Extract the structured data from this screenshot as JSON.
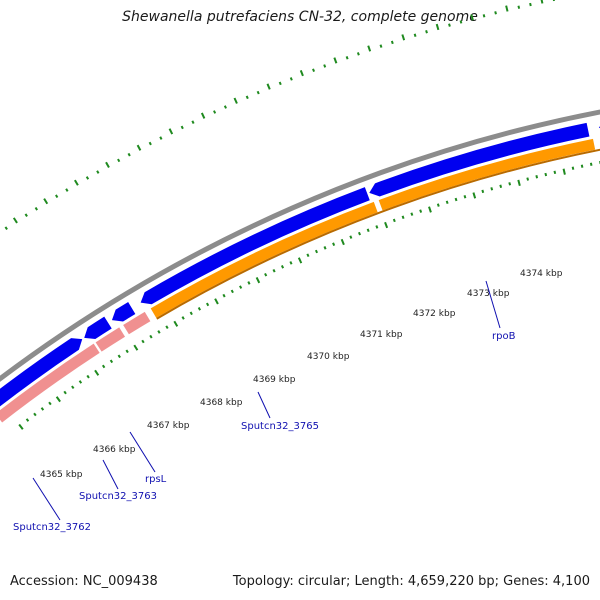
{
  "title": "Shewanella putrefaciens CN-32, complete genome",
  "footer": {
    "accession": "Accession: NC_009438",
    "summary": "Topology: circular; Length: 4,659,220 bp; Genes: 4,100"
  },
  "colors": {
    "backbone": "#8c8c8c",
    "forward_cds": "#0000f0",
    "cds_bar": "#ff9900",
    "cds_bar_alt": "#f09090",
    "gc_skew": "#1f8a1f",
    "label": "#1010b0"
  },
  "ticks": [
    "4365 kbp",
    "4366 kbp",
    "4367 kbp",
    "4368 kbp",
    "4369 kbp",
    "4370 kbp",
    "4371 kbp",
    "4372 kbp",
    "4373 kbp",
    "4374 kbp"
  ],
  "genes": [
    {
      "name": "Sputcn32_3762"
    },
    {
      "name": "Sputcn32_3763"
    },
    {
      "name": "rpsL"
    },
    {
      "name": "Sputcn32_3765"
    },
    {
      "name": "rpoB"
    }
  ]
}
